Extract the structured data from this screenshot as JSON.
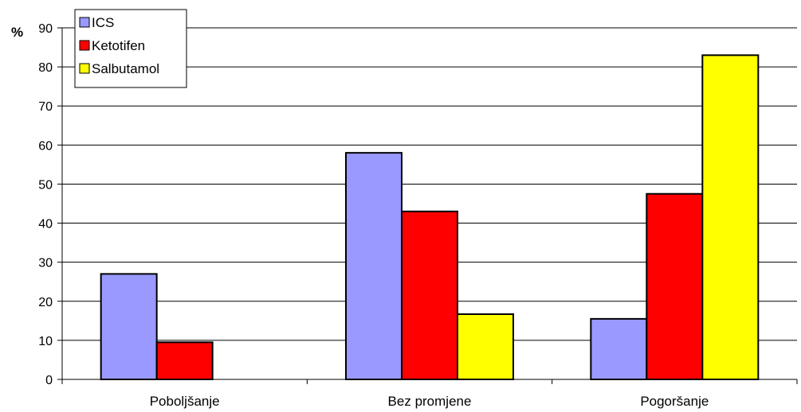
{
  "chart_data": {
    "type": "bar",
    "title": "",
    "xlabel": "",
    "ylabel": "%",
    "ylim": [
      0,
      90
    ],
    "yticks": [
      0,
      10,
      20,
      30,
      40,
      50,
      60,
      70,
      80,
      90
    ],
    "grid": true,
    "legend_position": "top-left",
    "categories": [
      "Poboljšanje",
      "Bez promjene",
      "Pogoršanje"
    ],
    "series": [
      {
        "name": "ICS",
        "color": "#9999FF",
        "values": [
          27,
          58,
          15.5
        ]
      },
      {
        "name": "Ketotifen",
        "color": "#FF0000",
        "values": [
          9.5,
          43,
          47.5
        ]
      },
      {
        "name": "Salbutamol",
        "color": "#FFFF00",
        "values": [
          0,
          16.7,
          83
        ]
      }
    ]
  }
}
